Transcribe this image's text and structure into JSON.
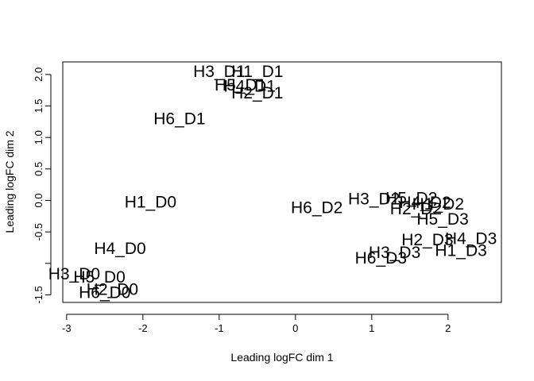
{
  "chart_data": {
    "type": "scatter",
    "marker": "text-labels",
    "title": "",
    "xlabel": "Leading logFC dim 1",
    "ylabel": "Leading logFC dim 2",
    "xlim": [
      -3.05,
      2.7
    ],
    "ylim": [
      -1.62,
      2.2
    ],
    "grid": false,
    "legend": "none",
    "x_ticks": [
      -3,
      -2,
      -1,
      0,
      1,
      2
    ],
    "x_tick_labels": [
      "-3",
      "-2",
      "-1",
      "0",
      "1",
      "2"
    ],
    "y_ticks": [
      -1.5,
      -1.0,
      -0.5,
      0.0,
      0.5,
      1.0,
      1.5,
      2.0
    ],
    "y_tick_labels": [
      "-1.5",
      "",
      "-0.5",
      "0.0",
      "0.5",
      "1.0",
      "1.5",
      "2.0"
    ],
    "points": [
      {
        "label": "H1_D0",
        "x": -1.9,
        "y": -0.03
      },
      {
        "label": "H4_D0",
        "x": -2.3,
        "y": -0.77
      },
      {
        "label": "H3_D0",
        "x": -2.9,
        "y": -1.17
      },
      {
        "label": "H5_D0",
        "x": -2.57,
        "y": -1.22
      },
      {
        "label": "H2_D0",
        "x": -2.4,
        "y": -1.42
      },
      {
        "label": "H6_D0",
        "x": -2.5,
        "y": -1.47
      },
      {
        "label": "H3_D1",
        "x": -1.0,
        "y": 2.04
      },
      {
        "label": "H1_D1",
        "x": -0.5,
        "y": 2.04
      },
      {
        "label": "H5_D1",
        "x": -0.72,
        "y": 1.83
      },
      {
        "label": "H4_D1",
        "x": -0.6,
        "y": 1.81
      },
      {
        "label": "H2_D1",
        "x": -0.5,
        "y": 1.7
      },
      {
        "label": "H6_D1",
        "x": -1.52,
        "y": 1.29
      },
      {
        "label": "H6_D2",
        "x": 0.28,
        "y": -0.12
      },
      {
        "label": "H3_D2",
        "x": 1.03,
        "y": 0.02
      },
      {
        "label": "H5_D2",
        "x": 1.52,
        "y": 0.03
      },
      {
        "label": "H4_D2",
        "x": 1.7,
        "y": -0.04
      },
      {
        "label": "H1_D2",
        "x": 1.87,
        "y": -0.06
      },
      {
        "label": "H2_D2",
        "x": 1.58,
        "y": -0.14
      },
      {
        "label": "H5_D3",
        "x": 1.93,
        "y": -0.3
      },
      {
        "label": "H2_D3",
        "x": 1.73,
        "y": -0.63
      },
      {
        "label": "H4_D3",
        "x": 2.3,
        "y": -0.61
      },
      {
        "label": "H1_D3",
        "x": 2.17,
        "y": -0.8
      },
      {
        "label": "H3_D3",
        "x": 1.3,
        "y": -0.83
      },
      {
        "label": "H6_D3",
        "x": 1.12,
        "y": -0.92
      }
    ]
  }
}
